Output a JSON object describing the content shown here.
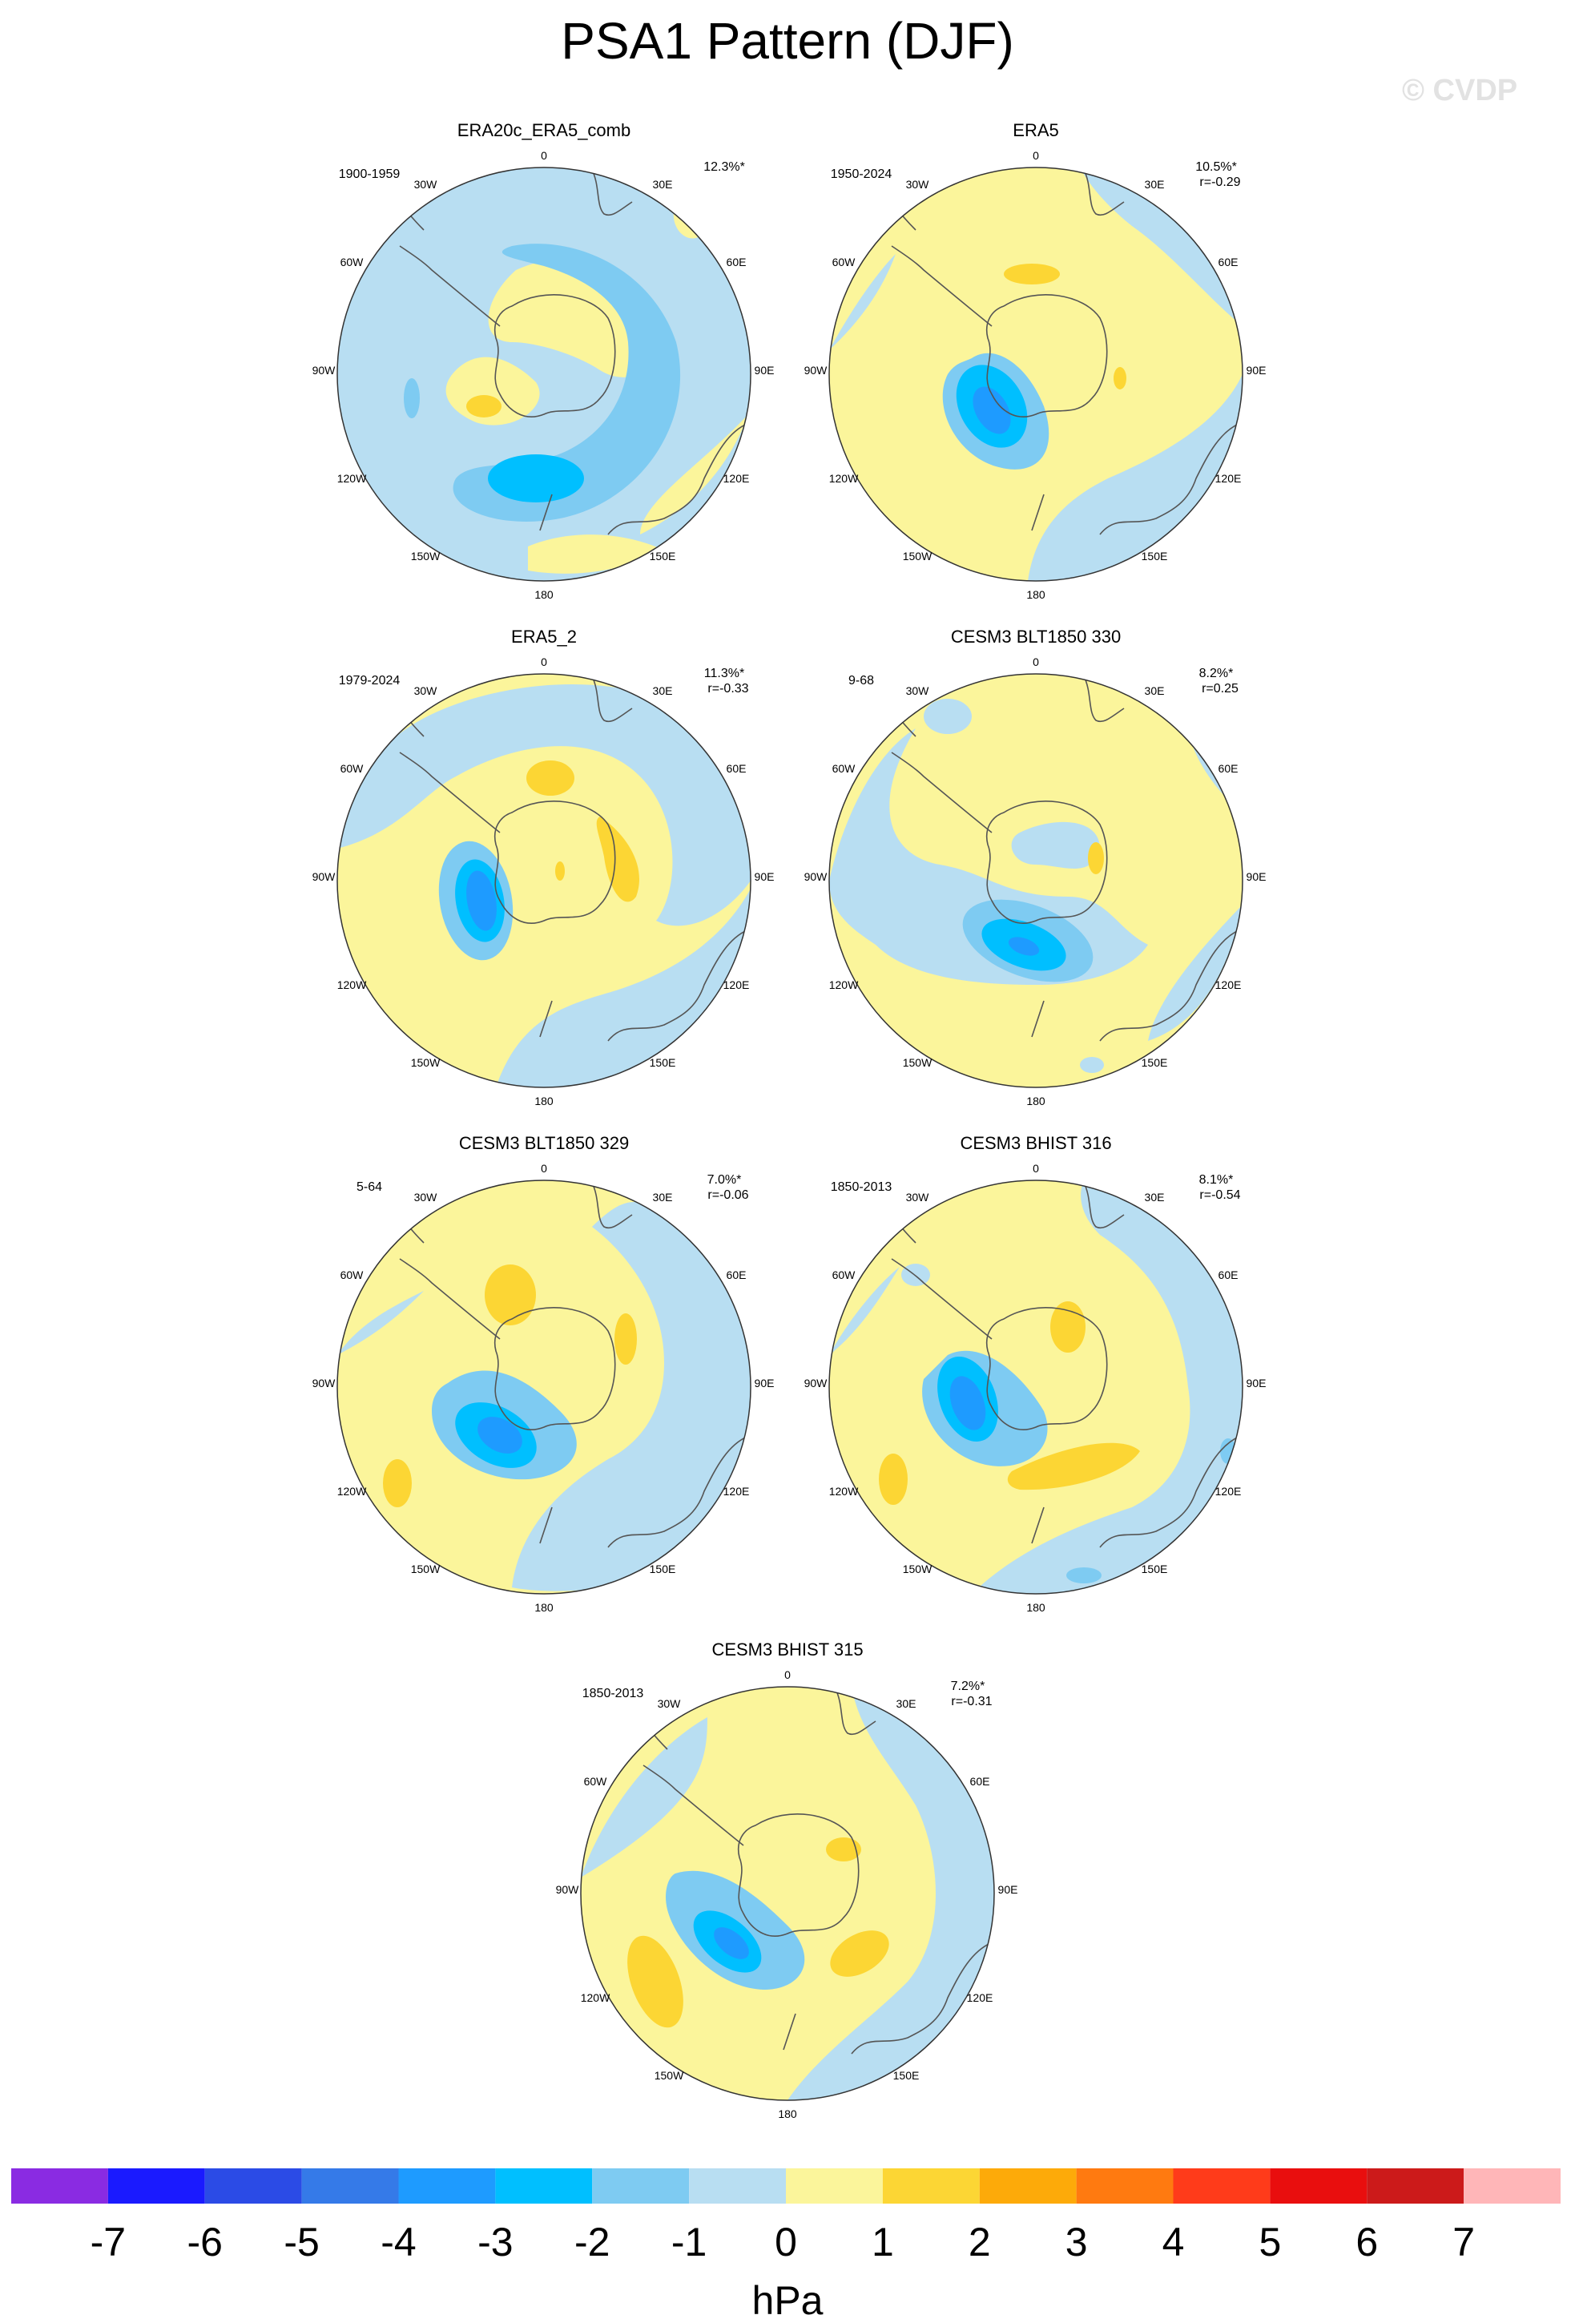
{
  "title": "PSA1 Pattern (DJF)",
  "watermark": "© CVDP",
  "colorbar": {
    "unit": "hPa",
    "tick_labels": [
      "-7",
      "-6",
      "-5",
      "-4",
      "-3",
      "-2",
      "-1",
      "0",
      "1",
      "2",
      "3",
      "4",
      "5",
      "6",
      "7"
    ],
    "colors": [
      "#8a2be2",
      "#1a1aff",
      "#2b4be6",
      "#357ae8",
      "#1e9bff",
      "#00bfff",
      "#7ecbf2",
      "#b8def2",
      "#fbf59b",
      "#fcd634",
      "#fdaa09",
      "#ff7a10",
      "#ff3b1a",
      "#e90e0e",
      "#cc1a1a",
      "#ffb6b8"
    ]
  },
  "map_labels": {
    "lon": [
      "0",
      "30E",
      "60E",
      "90E",
      "120E",
      "150E",
      "180",
      "150W",
      "120W",
      "90W",
      "60W",
      "30W"
    ]
  },
  "panels": [
    {
      "title": "ERA20c_ERA5_comb",
      "period": "1900-1959",
      "pct": "12.3%*",
      "corr": ""
    },
    {
      "title": "ERA5",
      "period": "1950-2024",
      "pct": "10.5%*",
      "corr": "r=-0.29"
    },
    {
      "title": "ERA5_2",
      "period": "1979-2024",
      "pct": "11.3%*",
      "corr": "r=-0.33"
    },
    {
      "title": "CESM3 BLT1850 330",
      "period": "9-68",
      "pct": "8.2%*",
      "corr": "r=0.25"
    },
    {
      "title": "CESM3 BLT1850 329",
      "period": "5-64",
      "pct": "7.0%*",
      "corr": "r=-0.06"
    },
    {
      "title": "CESM3 BHIST 316",
      "period": "1850-2013",
      "pct": "8.1%*",
      "corr": "r=-0.54"
    },
    {
      "title": "CESM3 BHIST 315",
      "period": "1850-2013",
      "pct": "7.2%*",
      "corr": "r=-0.31"
    }
  ]
}
